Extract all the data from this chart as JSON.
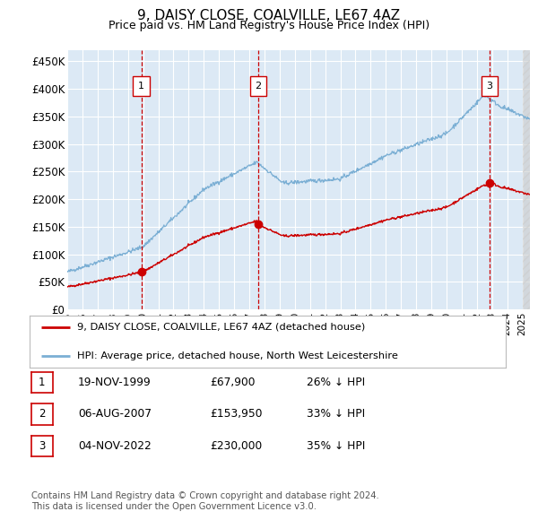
{
  "title": "9, DAISY CLOSE, COALVILLE, LE67 4AZ",
  "subtitle": "Price paid vs. HM Land Registry's House Price Index (HPI)",
  "ylabel_ticks": [
    "£0",
    "£50K",
    "£100K",
    "£150K",
    "£200K",
    "£250K",
    "£300K",
    "£350K",
    "£400K",
    "£450K"
  ],
  "ytick_values": [
    0,
    50000,
    100000,
    150000,
    200000,
    250000,
    300000,
    350000,
    400000,
    450000
  ],
  "xlim_start": 1995.0,
  "xlim_end": 2025.5,
  "ylim_min": 0,
  "ylim_max": 470000,
  "sale_dates": [
    1999.88,
    2007.59,
    2022.84
  ],
  "sale_prices": [
    67900,
    153950,
    230000
  ],
  "sale_labels": [
    "1",
    "2",
    "3"
  ],
  "legend_red_label": "9, DAISY CLOSE, COALVILLE, LE67 4AZ (detached house)",
  "legend_blue_label": "HPI: Average price, detached house, North West Leicestershire",
  "table_rows": [
    {
      "label": "1",
      "date": "19-NOV-1999",
      "price": "£67,900",
      "hpi": "26% ↓ HPI"
    },
    {
      "label": "2",
      "date": "06-AUG-2007",
      "price": "£153,950",
      "hpi": "33% ↓ HPI"
    },
    {
      "label": "3",
      "date": "04-NOV-2022",
      "price": "£230,000",
      "hpi": "35% ↓ HPI"
    }
  ],
  "footnote1": "Contains HM Land Registry data © Crown copyright and database right 2024.",
  "footnote2": "This data is licensed under the Open Government Licence v3.0.",
  "background_color": "#ffffff",
  "plot_bg_color": "#dce9f5",
  "grid_color": "#ffffff",
  "red_line_color": "#cc0000",
  "blue_line_color": "#7bafd4",
  "dashed_vline_color": "#cc0000"
}
